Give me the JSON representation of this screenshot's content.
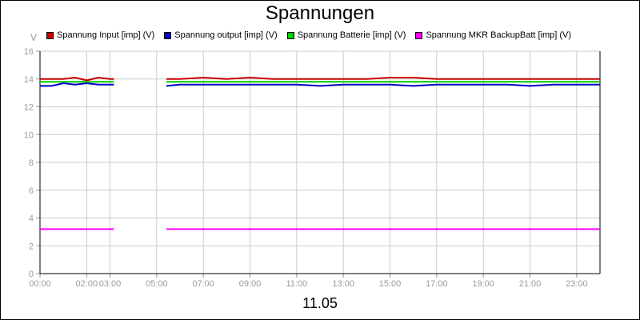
{
  "chart_data": {
    "type": "line",
    "title": "Spannungen",
    "xlabel": "11.05",
    "ylabel": "V",
    "ylim": [
      0,
      16
    ],
    "xlim": [
      "00:00",
      "24:00"
    ],
    "yticks": [
      "0",
      "2",
      "4",
      "6",
      "8",
      "10",
      "12",
      "14",
      "16"
    ],
    "xticks": [
      "00:00",
      "02:00",
      "03:00",
      "05:00",
      "07:00",
      "09:00",
      "11:00",
      "13:00",
      "15:00",
      "17:00",
      "19:00",
      "21:00",
      "23:00"
    ],
    "grid": true,
    "legend_position": "top",
    "gap": [
      "03:10",
      "05:25"
    ],
    "series": [
      {
        "name": "Spannung Input [imp] (V)",
        "color": "#cc0000",
        "segments": [
          {
            "x": [
              "00:00",
              "00:30",
              "01:00",
              "01:30",
              "02:00",
              "02:30",
              "03:00",
              "03:10"
            ],
            "y": [
              14.0,
              14.0,
              14.0,
              14.1,
              13.9,
              14.1,
              14.0,
              14.0
            ]
          },
          {
            "x": [
              "05:25",
              "06:00",
              "07:00",
              "08:00",
              "09:00",
              "10:00",
              "11:00",
              "12:00",
              "13:00",
              "14:00",
              "15:00",
              "16:00",
              "17:00",
              "18:00",
              "19:00",
              "20:00",
              "21:00",
              "22:00",
              "23:00",
              "24:00"
            ],
            "y": [
              14.0,
              14.0,
              14.1,
              14.0,
              14.1,
              14.0,
              14.0,
              14.0,
              14.0,
              14.0,
              14.1,
              14.1,
              14.0,
              14.0,
              14.0,
              14.0,
              14.0,
              14.0,
              14.0,
              14.0
            ]
          }
        ]
      },
      {
        "name": "Spannung output [imp] (V)",
        "color": "#0000cc",
        "segments": [
          {
            "x": [
              "00:00",
              "00:30",
              "01:00",
              "01:30",
              "02:00",
              "02:30",
              "03:00",
              "03:10"
            ],
            "y": [
              13.5,
              13.5,
              13.7,
              13.6,
              13.7,
              13.6,
              13.6,
              13.6
            ]
          },
          {
            "x": [
              "05:25",
              "06:00",
              "07:00",
              "08:00",
              "09:00",
              "10:00",
              "11:00",
              "12:00",
              "13:00",
              "14:00",
              "15:00",
              "16:00",
              "17:00",
              "18:00",
              "19:00",
              "20:00",
              "21:00",
              "22:00",
              "23:00",
              "24:00"
            ],
            "y": [
              13.5,
              13.6,
              13.6,
              13.6,
              13.6,
              13.6,
              13.6,
              13.5,
              13.6,
              13.6,
              13.6,
              13.5,
              13.6,
              13.6,
              13.6,
              13.6,
              13.5,
              13.6,
              13.6,
              13.6
            ]
          }
        ]
      },
      {
        "name": "Spannung Batterie [imp] (V)",
        "color": "#00cc00",
        "segments": [
          {
            "x": [
              "00:00",
              "03:10"
            ],
            "y": [
              13.8,
              13.8
            ]
          },
          {
            "x": [
              "05:25",
              "24:00"
            ],
            "y": [
              13.8,
              13.8
            ]
          }
        ]
      },
      {
        "name": "Spannung MKR BackupBatt [imp] (V)",
        "color": "#ff00ff",
        "segments": [
          {
            "x": [
              "00:00",
              "03:10"
            ],
            "y": [
              3.2,
              3.2
            ]
          },
          {
            "x": [
              "05:25",
              "24:00"
            ],
            "y": [
              3.2,
              3.2
            ]
          }
        ]
      }
    ]
  }
}
